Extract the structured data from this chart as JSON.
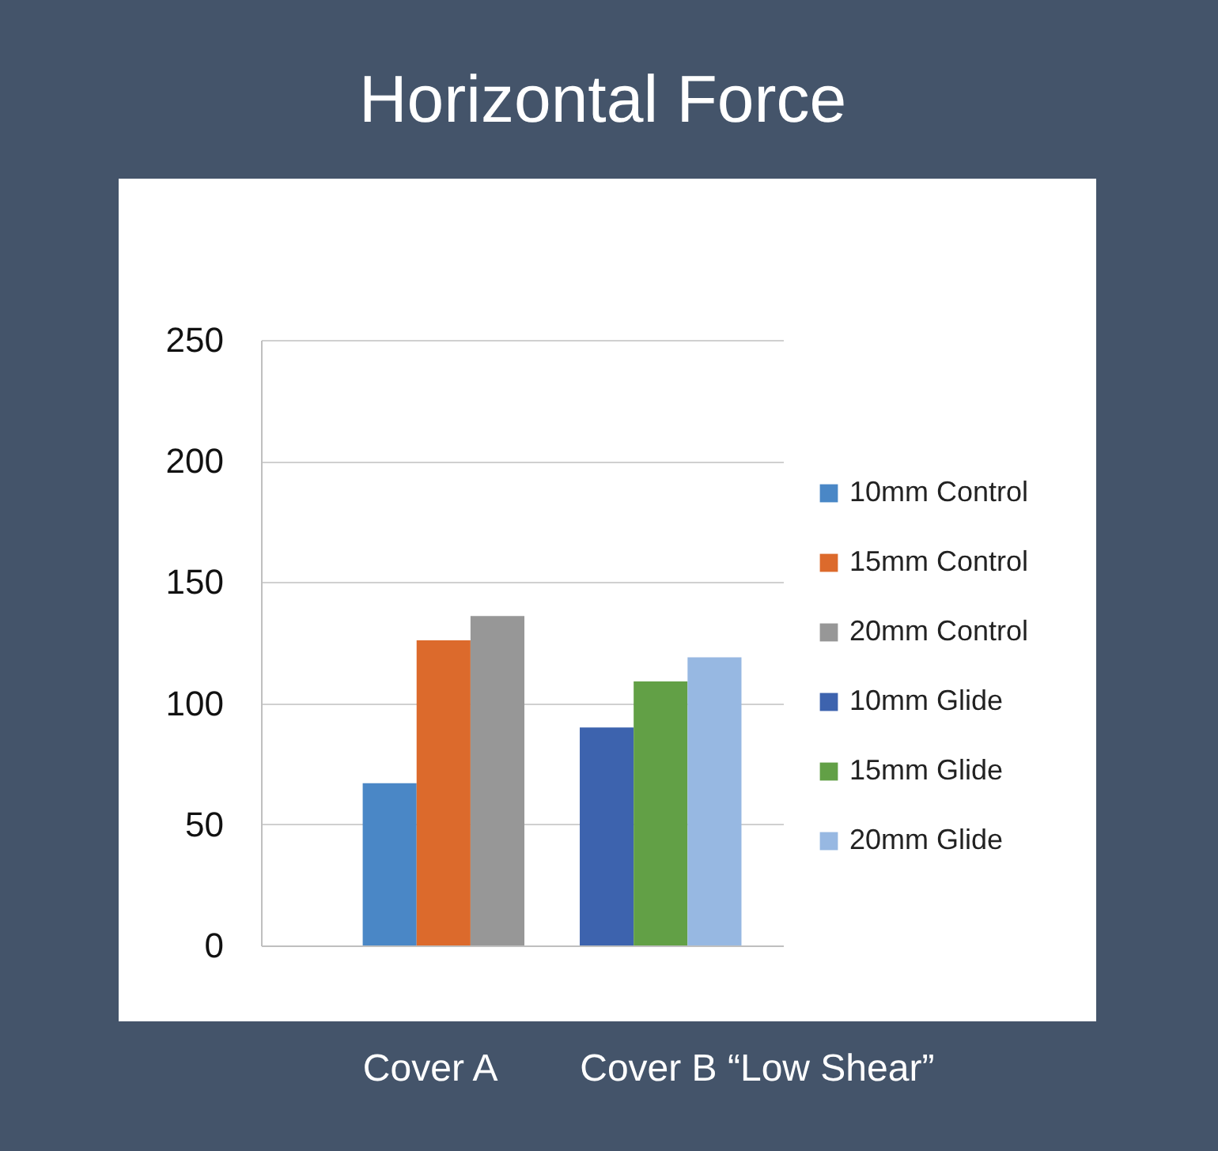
{
  "chart_data": {
    "type": "bar",
    "title": "Horizontal Force",
    "categories": [
      "Cover A",
      "Cover B “Low Shear”"
    ],
    "series": [
      {
        "name": "10mm Control",
        "color": "#4a87c6",
        "values": [
          67,
          null
        ]
      },
      {
        "name": "15mm Control",
        "color": "#dc6a2c",
        "values": [
          126,
          null
        ]
      },
      {
        "name": "20mm Control",
        "color": "#979797",
        "values": [
          136,
          null
        ]
      },
      {
        "name": "10mm Glide",
        "color": "#3d63ae",
        "values": [
          null,
          90
        ]
      },
      {
        "name": "15mm Glide",
        "color": "#62a046",
        "values": [
          null,
          109
        ]
      },
      {
        "name": "20mm Glide",
        "color": "#97b8e2",
        "values": [
          null,
          119
        ]
      }
    ],
    "ylim": [
      0,
      250
    ],
    "yticks": [
      0,
      50,
      100,
      150,
      200,
      250
    ],
    "grid": "y",
    "legend": "right"
  }
}
